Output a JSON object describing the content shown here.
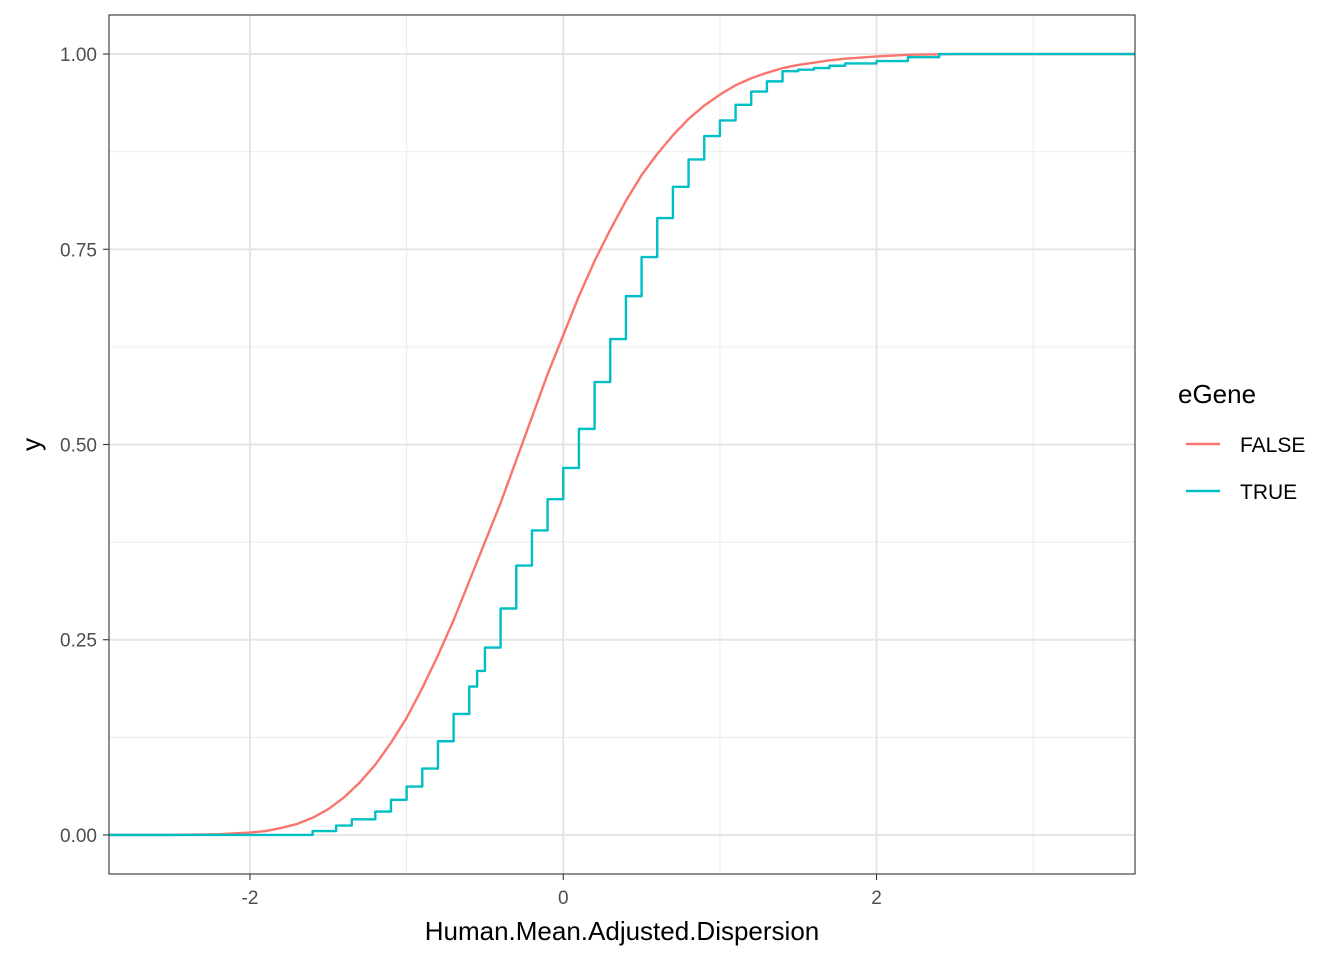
{
  "chart_data": {
    "type": "line",
    "subtype": "empirical cumulative distribution (step)",
    "title": "",
    "xlabel": "Human.Mean.Adjusted.Dispersion",
    "ylabel": "y",
    "xlim": [
      -2.9,
      3.65
    ],
    "ylim": [
      -0.05,
      1.05
    ],
    "x_ticks": [
      -2,
      0,
      2
    ],
    "x_tick_labels": [
      "-2",
      "0",
      "2"
    ],
    "y_ticks": [
      0,
      0.25,
      0.5,
      0.75,
      1
    ],
    "y_tick_labels": [
      "0.00",
      "0.25",
      "0.50",
      "0.75",
      "1.00"
    ],
    "grid": true,
    "legend": {
      "title": "eGene",
      "position": "right"
    },
    "series": [
      {
        "name": "FALSE",
        "color": "#F8766D",
        "x": [
          -2.9,
          -2.5,
          -2.2,
          -2.0,
          -1.9,
          -1.8,
          -1.7,
          -1.6,
          -1.5,
          -1.4,
          -1.3,
          -1.2,
          -1.1,
          -1.0,
          -0.9,
          -0.8,
          -0.7,
          -0.6,
          -0.5,
          -0.4,
          -0.3,
          -0.2,
          -0.1,
          0.0,
          0.1,
          0.2,
          0.3,
          0.4,
          0.5,
          0.6,
          0.7,
          0.8,
          0.9,
          1.0,
          1.1,
          1.2,
          1.3,
          1.4,
          1.5,
          1.6,
          1.7,
          1.8,
          2.0,
          2.2,
          2.5,
          3.0,
          3.65
        ],
        "y": [
          0.0,
          0.0,
          0.001,
          0.003,
          0.005,
          0.009,
          0.014,
          0.022,
          0.033,
          0.048,
          0.067,
          0.09,
          0.118,
          0.15,
          0.188,
          0.23,
          0.275,
          0.325,
          0.375,
          0.425,
          0.48,
          0.535,
          0.59,
          0.64,
          0.69,
          0.735,
          0.775,
          0.812,
          0.845,
          0.872,
          0.896,
          0.917,
          0.934,
          0.948,
          0.96,
          0.969,
          0.976,
          0.982,
          0.986,
          0.989,
          0.992,
          0.994,
          0.997,
          0.999,
          1.0,
          1.0,
          1.0
        ]
      },
      {
        "name": "TRUE",
        "color": "#00BFC4",
        "x": [
          -2.9,
          -1.65,
          -1.6,
          -1.45,
          -1.35,
          -1.2,
          -1.1,
          -1.0,
          -0.9,
          -0.8,
          -0.7,
          -0.6,
          -0.55,
          -0.5,
          -0.4,
          -0.3,
          -0.2,
          -0.1,
          0.0,
          0.1,
          0.2,
          0.3,
          0.4,
          0.5,
          0.6,
          0.7,
          0.8,
          0.9,
          1.0,
          1.1,
          1.2,
          1.3,
          1.4,
          1.5,
          1.6,
          1.7,
          1.8,
          2.0,
          2.2,
          2.4,
          3.65
        ],
        "y": [
          0.0,
          0.0,
          0.005,
          0.012,
          0.02,
          0.03,
          0.045,
          0.062,
          0.085,
          0.12,
          0.155,
          0.19,
          0.21,
          0.24,
          0.29,
          0.345,
          0.39,
          0.43,
          0.47,
          0.52,
          0.58,
          0.635,
          0.69,
          0.74,
          0.79,
          0.83,
          0.865,
          0.895,
          0.915,
          0.935,
          0.952,
          0.965,
          0.978,
          0.98,
          0.982,
          0.985,
          0.988,
          0.991,
          0.996,
          1.0,
          1.0
        ]
      }
    ]
  }
}
